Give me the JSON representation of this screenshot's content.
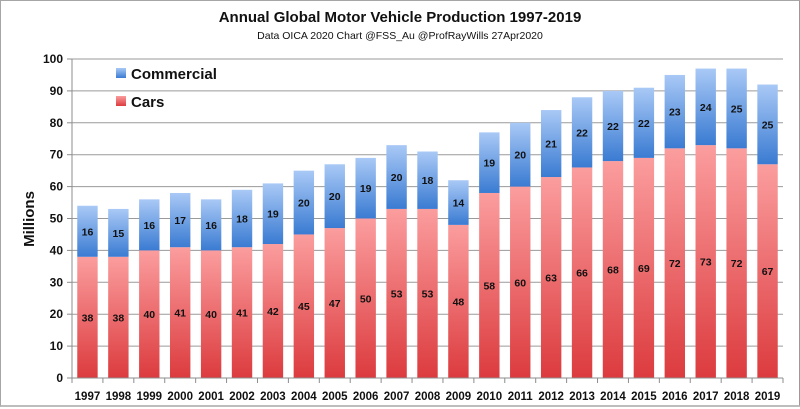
{
  "chart_data": {
    "type": "bar",
    "stacked": true,
    "title": "Annual Global Motor Vehicle Production 1997-2019",
    "subtitle": "Data OICA 2020  Chart @FSS_Au  @ProfRayWills 27Apr2020",
    "xlabel": "",
    "ylabel": "Millions",
    "ylim": [
      0,
      100
    ],
    "yticks": [
      0,
      10,
      20,
      30,
      40,
      50,
      60,
      70,
      80,
      90,
      100
    ],
    "grid": true,
    "legend_position": "top-left",
    "categories": [
      "1997",
      "1998",
      "1999",
      "2000",
      "2001",
      "2002",
      "2003",
      "2004",
      "2005",
      "2006",
      "2007",
      "2008",
      "2009",
      "2010",
      "2011",
      "2012",
      "2013",
      "2014",
      "2015",
      "2016",
      "2017",
      "2018",
      "2019"
    ],
    "series": [
      {
        "name": "Cars",
        "color": "#e8474a",
        "color_light": "#f9a3a4",
        "values": [
          38,
          38,
          40,
          41,
          40,
          41,
          42,
          45,
          47,
          50,
          53,
          53,
          48,
          58,
          60,
          63,
          66,
          68,
          69,
          72,
          73,
          72,
          67
        ]
      },
      {
        "name": "Commercial",
        "color": "#3b7fd6",
        "color_light": "#a9c8f5",
        "values": [
          16,
          15,
          16,
          17,
          16,
          18,
          19,
          20,
          20,
          19,
          20,
          18,
          14,
          19,
          20,
          21,
          22,
          22,
          22,
          23,
          24,
          25,
          25
        ]
      }
    ],
    "legend": [
      "Commercial",
      "Cars"
    ]
  }
}
